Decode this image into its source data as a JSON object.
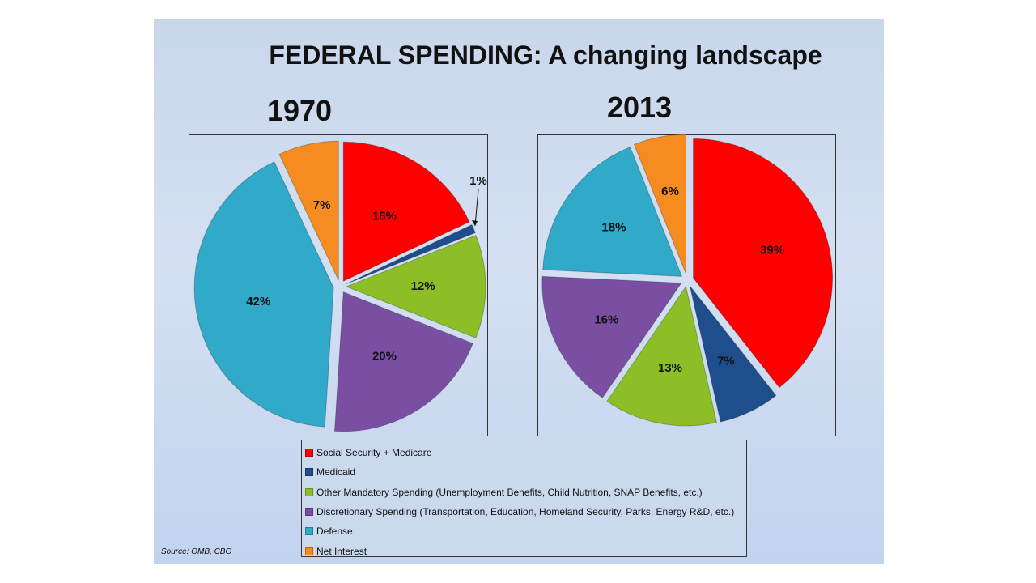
{
  "chart_data": [
    {
      "type": "pie",
      "title": "FEDERAL SPENDING: A changing landscape",
      "subtitle": "1970",
      "categories": [
        "Social Security + Medicare",
        "Medicaid",
        "Other Mandatory Spending (Unemployment Benefits, Child Nutrition, SNAP Benefits, etc.)",
        "Discretionary Spending (Transportation, Education, Homeland Security, Parks, Energy R&D, etc.)",
        "Defense",
        "Net Interest"
      ],
      "values": [
        18,
        1,
        12,
        20,
        42,
        7
      ],
      "value_labels": [
        "18%",
        "1%",
        "12%",
        "20%",
        "42%",
        "7%"
      ],
      "colors": [
        "#ff0000",
        "#1f4e8c",
        "#8cbf26",
        "#7a4fa3",
        "#31a9c9",
        "#f68b1f"
      ],
      "exploded": true
    },
    {
      "type": "pie",
      "title": "FEDERAL SPENDING: A changing landscape",
      "subtitle": "2013",
      "categories": [
        "Social Security + Medicare",
        "Medicaid",
        "Other Mandatory Spending (Unemployment Benefits, Child Nutrition, SNAP Benefits, etc.)",
        "Discretionary Spending (Transportation, Education, Homeland Security, Parks, Energy R&D, etc.)",
        "Defense",
        "Net Interest"
      ],
      "values": [
        39,
        7,
        13,
        16,
        18,
        6
      ],
      "value_labels": [
        "39%",
        "7%",
        "13%",
        "16%",
        "18%",
        "6%"
      ],
      "colors": [
        "#ff0000",
        "#1f4e8c",
        "#8cbf26",
        "#7a4fa3",
        "#31a9c9",
        "#f68b1f"
      ],
      "exploded": true
    }
  ],
  "title": "FEDERAL SPENDING: A changing landscape",
  "years": [
    "1970",
    "2013"
  ],
  "legend": {
    "items": [
      {
        "label": "Social Security + Medicare",
        "color": "#ff0000"
      },
      {
        "label": "Medicaid",
        "color": "#1f4e8c"
      },
      {
        "label": "Other Mandatory Spending (Unemployment Benefits, Child Nutrition, SNAP Benefits, etc.)",
        "color": "#8cbf26"
      },
      {
        "label": "Discretionary Spending (Transportation, Education, Homeland Security, Parks, Energy R&D, etc.)",
        "color": "#7a4fa3"
      },
      {
        "label": "Defense",
        "color": "#31a9c9"
      },
      {
        "label": "Net Interest",
        "color": "#f68b1f"
      }
    ]
  },
  "source": "Source:  OMB, CBO"
}
